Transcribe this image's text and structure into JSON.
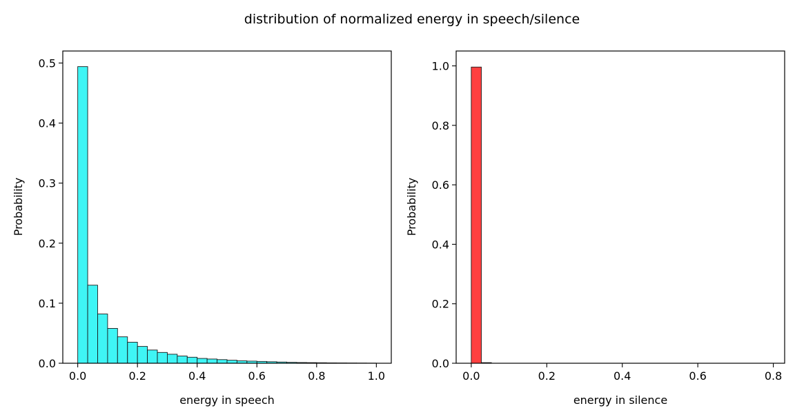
{
  "figure": {
    "suptitle": "distribution of normalized energy in speech/silence"
  },
  "chart_data": [
    {
      "type": "bar",
      "title": "",
      "xlabel": "energy in speech",
      "ylabel": "Probability",
      "xlim": [
        -0.05,
        1.05
      ],
      "ylim": [
        0,
        0.52
      ],
      "xticks": [
        "0.0",
        "0.2",
        "0.4",
        "0.6",
        "0.8",
        "1.0"
      ],
      "yticks": [
        "0.0",
        "0.1",
        "0.2",
        "0.3",
        "0.4",
        "0.5"
      ],
      "grid": false,
      "bin_width": 0.0333,
      "color": "#3ff5f5",
      "edge_color": "#1a1a1a",
      "bin_starts": [
        0.0,
        0.0333,
        0.0667,
        0.1,
        0.1333,
        0.1667,
        0.2,
        0.2333,
        0.2667,
        0.3,
        0.3333,
        0.3667,
        0.4,
        0.4333,
        0.4667,
        0.5,
        0.5333,
        0.5667,
        0.6,
        0.6333,
        0.6667,
        0.7,
        0.7333,
        0.7667,
        0.8,
        0.8333,
        0.8667,
        0.9,
        0.9333,
        0.9667
      ],
      "values": [
        0.494,
        0.13,
        0.082,
        0.058,
        0.044,
        0.035,
        0.028,
        0.022,
        0.018,
        0.015,
        0.012,
        0.01,
        0.008,
        0.007,
        0.006,
        0.005,
        0.004,
        0.0035,
        0.003,
        0.0025,
        0.002,
        0.0015,
        0.0012,
        0.001,
        0.0008,
        0.0006,
        0.0005,
        0.0004,
        0.0003,
        0.0002
      ]
    },
    {
      "type": "bar",
      "title": "",
      "xlabel": "energy in silence",
      "ylabel": "Probability",
      "xlim": [
        -0.04,
        0.83
      ],
      "ylim": [
        0,
        1.05
      ],
      "xticks": [
        "0.0",
        "0.2",
        "0.4",
        "0.6",
        "0.8"
      ],
      "yticks": [
        "0.0",
        "0.2",
        "0.4",
        "0.6",
        "0.8",
        "1.0"
      ],
      "grid": false,
      "bin_width": 0.0267,
      "color": "#ff4040",
      "edge_color": "#1a1a1a",
      "bin_starts": [
        0.0,
        0.0267
      ],
      "values": [
        0.996,
        0.002
      ]
    }
  ]
}
